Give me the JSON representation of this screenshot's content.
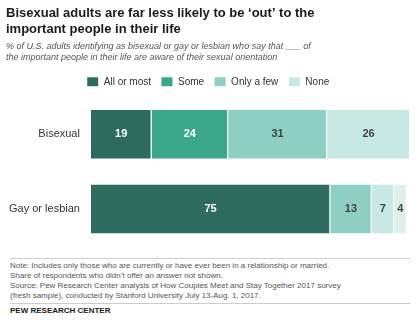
{
  "chart_data": {
    "type": "bar",
    "orientation": "horizontal",
    "stacked": true,
    "title": "Bisexual adults are far less likely to be ‘out’ to the\nimportant people in their life",
    "subtitle": "% of U.S. adults identifying as bisexual or gay or lesbian who say that ___ of\nthe important people in their life are aware of their sexual orientation",
    "categories": [
      "Bisexual",
      "Gay or lesbian"
    ],
    "series": [
      {
        "name": "All or most",
        "colors": [
          "#2d6b5e",
          "#2d6b5e"
        ],
        "values": [
          19,
          75
        ]
      },
      {
        "name": "Some",
        "colors": [
          "#3aa68a",
          "#8ecfc4"
        ],
        "values": [
          24,
          13
        ]
      },
      {
        "name": "Only a few",
        "colors": [
          "#8ecfc4",
          "#c8e8e3"
        ],
        "values": [
          31,
          7
        ]
      },
      {
        "name": "None",
        "colors": [
          "#c8e8e3",
          "#ddf0ec"
        ],
        "values": [
          26,
          4
        ]
      }
    ],
    "xlim": [
      0,
      100
    ],
    "data_labels": true,
    "tick_labels": "y",
    "grid": false,
    "legend": "top",
    "notes": [
      "Note: Includes only those who are currently or have ever been in a relationship or married.",
      "Share of respondents who didn’t offer an answer not shown.",
      "Source: Pew Research Center analysis of How Couples Meet and Stay Together 2017 survey",
      "(fresh sample), conducted by Stanford University July 13-Aug. 1, 2017."
    ],
    "source": "PEW RESEARCH CENTER"
  }
}
